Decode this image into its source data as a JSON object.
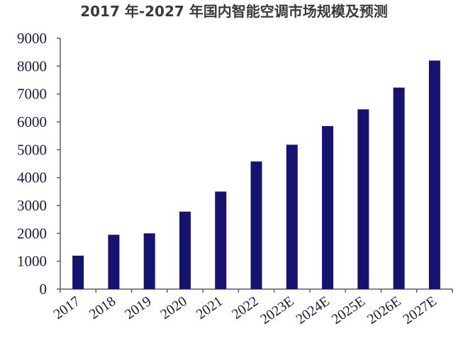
{
  "chart_data": {
    "type": "bar",
    "title": "2017 年-2027 年国内智能空调市场规模及预测",
    "xlabel": "",
    "ylabel": "",
    "categories": [
      "2017",
      "2018",
      "2019",
      "2020",
      "2021",
      "2022",
      "2023E",
      "2024E",
      "2025E",
      "2026E",
      "2027E"
    ],
    "values": [
      1200,
      1950,
      2000,
      2780,
      3500,
      4580,
      5180,
      5850,
      6450,
      7230,
      8200
    ],
    "ylim": [
      0,
      9000
    ],
    "yticks": [
      "0",
      "1000",
      "2000",
      "3000",
      "4000",
      "5000",
      "6000",
      "7000",
      "8000",
      "9000"
    ],
    "grid": false,
    "legend": "none",
    "bar_color": "#141470",
    "axis_color": "#5a5a80"
  }
}
